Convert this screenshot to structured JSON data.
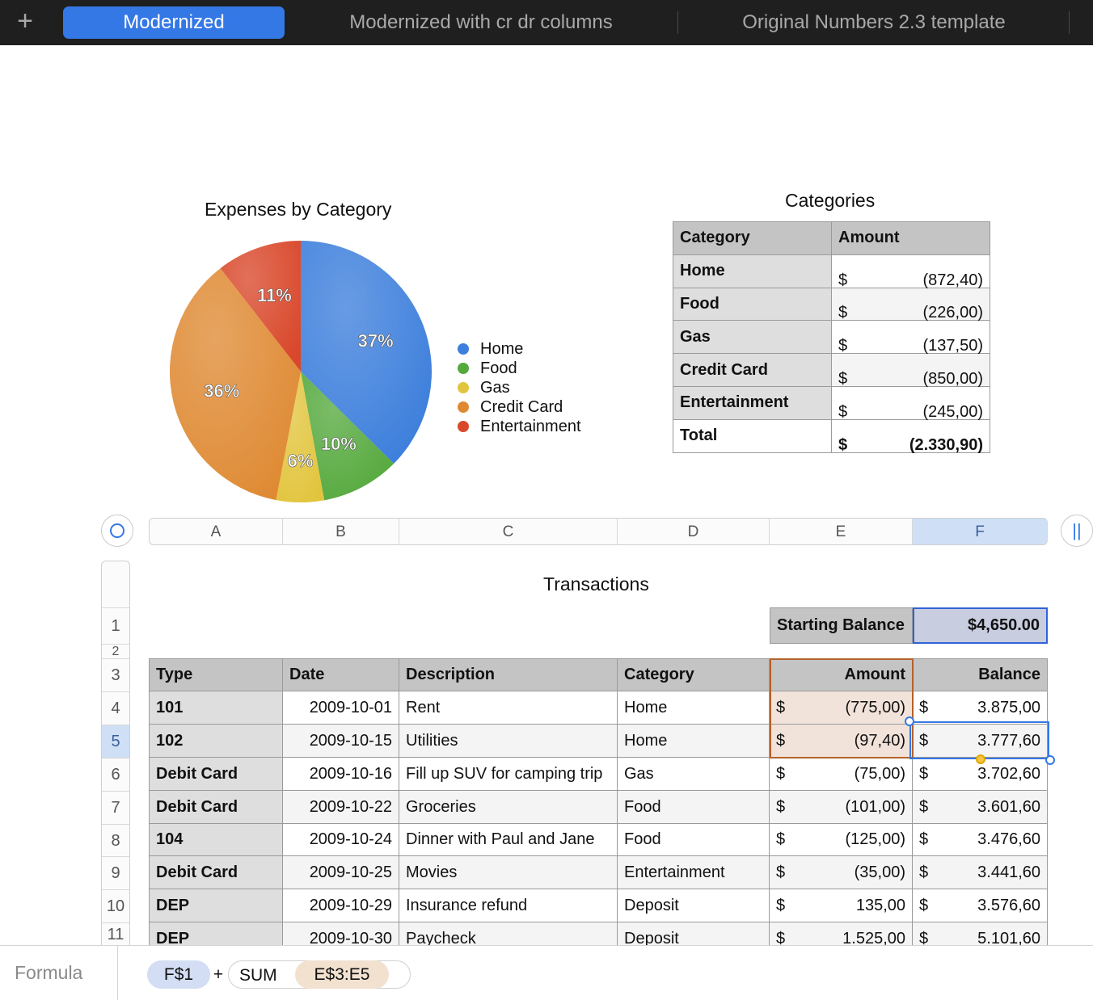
{
  "tabs": {
    "add_icon": "plus-icon",
    "items": [
      {
        "label": "Modernized",
        "active": true
      },
      {
        "label": "Modernized with cr dr columns",
        "active": false
      },
      {
        "label": "Original Numbers 2.3 template",
        "active": false
      }
    ]
  },
  "chart_data": {
    "type": "pie",
    "title": "Expenses by Category",
    "categories": [
      "Home",
      "Food",
      "Gas",
      "Credit Card",
      "Entertainment"
    ],
    "values": [
      872.4,
      226.0,
      137.5,
      850.0,
      245.0
    ],
    "labels": [
      "37%",
      "10%",
      "6%",
      "36%",
      "11%"
    ],
    "colors": [
      "#3d7fdc",
      "#55a93d",
      "#e2c53e",
      "#df8a33",
      "#d9482b"
    ],
    "legend": "right"
  },
  "categories_table": {
    "title": "Categories",
    "headers": [
      "Category",
      "Amount"
    ],
    "rows": [
      {
        "category": "Home",
        "currency": "$",
        "amount": "(872,40)"
      },
      {
        "category": "Food",
        "currency": "$",
        "amount": "(226,00)"
      },
      {
        "category": "Gas",
        "currency": "$",
        "amount": "(137,50)"
      },
      {
        "category": "Credit Card",
        "currency": "$",
        "amount": "(850,00)"
      },
      {
        "category": "Entertainment",
        "currency": "$",
        "amount": "(245,00)"
      }
    ],
    "total": {
      "category": "Total",
      "currency": "$",
      "amount": "(2.330,90)"
    }
  },
  "grid": {
    "columns": [
      "A",
      "B",
      "C",
      "D",
      "E",
      "F"
    ],
    "selected_column": "F",
    "rows": [
      "1",
      "2",
      "3",
      "4",
      "5",
      "6",
      "7",
      "8",
      "9",
      "10",
      "11"
    ],
    "selected_row": "5"
  },
  "transactions": {
    "title": "Transactions",
    "starting_balance_label": "Starting Balance",
    "starting_balance_value": "$4,650.00",
    "headers": [
      "Type",
      "Date",
      "Description",
      "Category",
      "Amount",
      "Balance"
    ],
    "rows": [
      {
        "type": "101",
        "date": "2009-10-01",
        "description": "Rent",
        "category": "Home",
        "amount_cur": "$",
        "amount": "(775,00)",
        "balance_cur": "$",
        "balance": "3.875,00"
      },
      {
        "type": "102",
        "date": "2009-10-15",
        "description": "Utilities",
        "category": "Home",
        "amount_cur": "$",
        "amount": "(97,40)",
        "balance_cur": "$",
        "balance": "3.777,60"
      },
      {
        "type": "Debit Card",
        "date": "2009-10-16",
        "description": "Fill up SUV for camping trip",
        "category": "Gas",
        "amount_cur": "$",
        "amount": "(75,00)",
        "balance_cur": "$",
        "balance": "3.702,60"
      },
      {
        "type": "Debit Card",
        "date": "2009-10-22",
        "description": "Groceries",
        "category": "Food",
        "amount_cur": "$",
        "amount": "(101,00)",
        "balance_cur": "$",
        "balance": "3.601,60"
      },
      {
        "type": "104",
        "date": "2009-10-24",
        "description": "Dinner with Paul and Jane",
        "category": "Food",
        "amount_cur": "$",
        "amount": "(125,00)",
        "balance_cur": "$",
        "balance": "3.476,60"
      },
      {
        "type": "Debit Card",
        "date": "2009-10-25",
        "description": "Movies",
        "category": "Entertainment",
        "amount_cur": "$",
        "amount": "(35,00)",
        "balance_cur": "$",
        "balance": "3.441,60"
      },
      {
        "type": "DEP",
        "date": "2009-10-29",
        "description": "Insurance refund",
        "category": "Deposit",
        "amount_cur": "$",
        "amount": "135,00",
        "balance_cur": "$",
        "balance": "3.576,60"
      },
      {
        "type": "DEP",
        "date": "2009-10-30",
        "description": "Paycheck",
        "category": "Deposit",
        "amount_cur": "$",
        "amount": "1.525,00",
        "balance_cur": "$",
        "balance": "5.101,60"
      }
    ]
  },
  "formula_bar": {
    "label": "Formula",
    "tokens": [
      "F$1",
      "+",
      "SUM",
      "E$3:E5"
    ]
  }
}
